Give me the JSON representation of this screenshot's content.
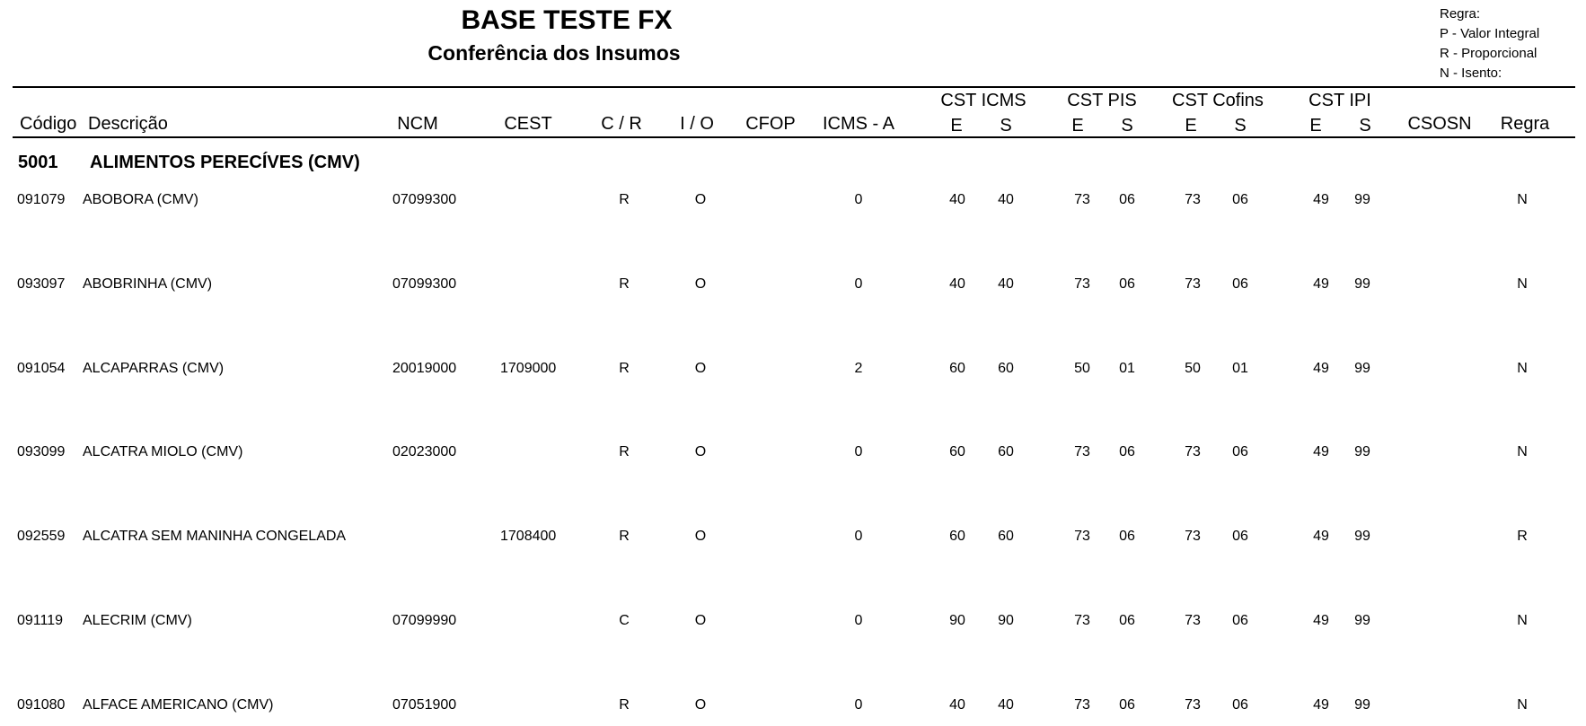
{
  "header": {
    "title": "BASE TESTE FX",
    "subtitle": "Conferência dos Insumos",
    "legend": [
      "Regra:",
      "P - Valor Integral",
      "R - Proporcional",
      "N - Isento:"
    ]
  },
  "columns": {
    "codigo": "Código",
    "descricao": "Descrição",
    "ncm": "NCM",
    "cest": "CEST",
    "cr": "C / R",
    "io": "I / O",
    "cfop": "CFOP",
    "icms_a": "ICMS - A",
    "cst_icms": "CST ICMS",
    "cst_pis": "CST PIS",
    "cst_cofins": "CST Cofins",
    "cst_ipi": "CST IPI",
    "icms_e": "E",
    "icms_s": "S",
    "pis_e": "E",
    "pis_s": "S",
    "cofins_e": "E",
    "cofins_s": "S",
    "ipi_e": "E",
    "ipi_s": "S",
    "csosn": "CSOSN",
    "regra": "Regra"
  },
  "group": {
    "code": "5001",
    "name": "ALIMENTOS PERECÍVES (CMV)"
  },
  "rows": [
    {
      "codigo": "091079",
      "descricao": "ABOBORA (CMV)",
      "ncm": "07099300",
      "cr": "R",
      "io": "O",
      "icms_a": "0",
      "icms_e": "40",
      "icms_s": "40",
      "pis_e": "73",
      "pis_s": "06",
      "cofins_e": "73",
      "cofins_s": "06",
      "ipi_e": "49",
      "ipi_s": "99",
      "regra": "N"
    },
    {
      "codigo": "093097",
      "descricao": "ABOBRINHA (CMV)",
      "ncm": "07099300",
      "cr": "R",
      "io": "O",
      "icms_a": "0",
      "icms_e": "40",
      "icms_s": "40",
      "pis_e": "73",
      "pis_s": "06",
      "cofins_e": "73",
      "cofins_s": "06",
      "ipi_e": "49",
      "ipi_s": "99",
      "regra": "N"
    },
    {
      "codigo": "091054",
      "descricao": "ALCAPARRAS (CMV)",
      "ncm": "20019000",
      "cest": "1709000",
      "cr": "R",
      "io": "O",
      "icms_a": "2",
      "icms_e": "60",
      "icms_s": "60",
      "pis_e": "50",
      "pis_s": "01",
      "cofins_e": "50",
      "cofins_s": "01",
      "ipi_e": "49",
      "ipi_s": "99",
      "regra": "N"
    },
    {
      "codigo": "093099",
      "descricao": "ALCATRA MIOLO (CMV)",
      "ncm": "02023000",
      "cr": "R",
      "io": "O",
      "icms_a": "0",
      "icms_e": "60",
      "icms_s": "60",
      "pis_e": "73",
      "pis_s": "06",
      "cofins_e": "73",
      "cofins_s": "06",
      "ipi_e": "49",
      "ipi_s": "99",
      "regra": "N"
    },
    {
      "codigo": "092559",
      "descricao": "ALCATRA SEM MANINHA CONGELADA",
      "cest": "1708400",
      "cr": "R",
      "io": "O",
      "icms_a": "0",
      "icms_e": "60",
      "icms_s": "60",
      "pis_e": "73",
      "pis_s": "06",
      "cofins_e": "73",
      "cofins_s": "06",
      "ipi_e": "49",
      "ipi_s": "99",
      "regra": "R"
    },
    {
      "codigo": "091119",
      "descricao": "ALECRIM (CMV)",
      "ncm": "07099990",
      "cr": "C",
      "io": "O",
      "icms_a": "0",
      "icms_e": "90",
      "icms_s": "90",
      "pis_e": "73",
      "pis_s": "06",
      "cofins_e": "73",
      "cofins_s": "06",
      "ipi_e": "49",
      "ipi_s": "99",
      "regra": "N"
    },
    {
      "codigo": "091080",
      "descricao": "ALFACE AMERICANO (CMV)",
      "ncm": "07051900",
      "cr": "R",
      "io": "O",
      "icms_a": "0",
      "icms_e": "40",
      "icms_s": "40",
      "pis_e": "73",
      "pis_s": "06",
      "cofins_e": "73",
      "cofins_s": "06",
      "ipi_e": "49",
      "ipi_s": "99",
      "regra": "N"
    }
  ]
}
